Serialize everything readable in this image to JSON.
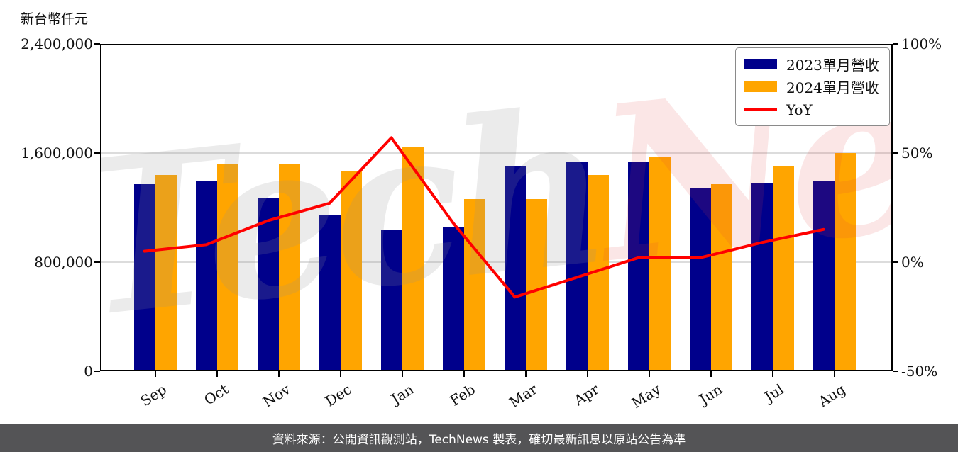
{
  "legend": {
    "items": [
      {
        "label": "2023單月營收",
        "type": "swatch",
        "color": "#00008B"
      },
      {
        "label": "2024單月營收",
        "type": "swatch",
        "color": "#FFA500"
      },
      {
        "label": "YoY",
        "type": "line",
        "color": "#FF0000"
      }
    ]
  },
  "watermark": {
    "part1": "Tech",
    "part2": "News"
  },
  "footer": {
    "text": "資料來源：公開資訊觀測站，TechNews 製表，確切最新訊息以原站公告為準"
  },
  "colors": {
    "bar_2023": "#00008B",
    "bar_2024": "#FFA500",
    "yoy_line": "#FF0000",
    "grid": "#DCDCDC",
    "axis": "#000000",
    "footer_bg": "#545456",
    "footer_text": "#FFFFFF",
    "watermark_tech": "rgba(145,145,145,0.18)",
    "watermark_news": "rgba(225,60,60,0.13)"
  },
  "chart_data": {
    "type": "bar+line",
    "categories": [
      "Sep",
      "Oct",
      "Nov",
      "Dec",
      "Jan",
      "Feb",
      "Mar",
      "Apr",
      "May",
      "Jun",
      "Jul",
      "Aug"
    ],
    "series": [
      {
        "name": "2023單月營收",
        "year": "2023",
        "type": "bar",
        "axis": "left",
        "unit": "新台幣仟元",
        "color": "#00008B",
        "values": [
          1370000,
          1400000,
          1270000,
          1150000,
          1040000,
          1060000,
          1500000,
          1540000,
          1540000,
          1340000,
          1380000,
          1390000
        ]
      },
      {
        "name": "2024單月營收",
        "year": "2024",
        "type": "bar",
        "axis": "left",
        "unit": "新台幣仟元",
        "color": "#FFA500",
        "values": [
          1440000,
          1520000,
          1520000,
          1470000,
          1640000,
          1260000,
          1260000,
          1440000,
          1570000,
          1370000,
          1500000,
          1600000
        ]
      },
      {
        "name": "YoY",
        "type": "line",
        "axis": "right",
        "unit": "%",
        "color": "#FF0000",
        "values": [
          5,
          8,
          19,
          27,
          57,
          18,
          -16,
          -7,
          2,
          2,
          9,
          15
        ]
      }
    ],
    "left_axis": {
      "label": "新台幣仟元",
      "min": 0,
      "max": 2400000,
      "ticks": [
        "2,400,000",
        "1,600,000",
        "800,000",
        "0"
      ]
    },
    "right_axis": {
      "min": -50,
      "max": 100,
      "ticks": [
        "100%",
        "50%",
        "0%",
        "-50%"
      ]
    },
    "grid": {
      "horizontal_values": [
        1600000,
        800000
      ],
      "vertical": false
    },
    "legend_position": "top-right",
    "x_label_rotation_deg": -33
  }
}
